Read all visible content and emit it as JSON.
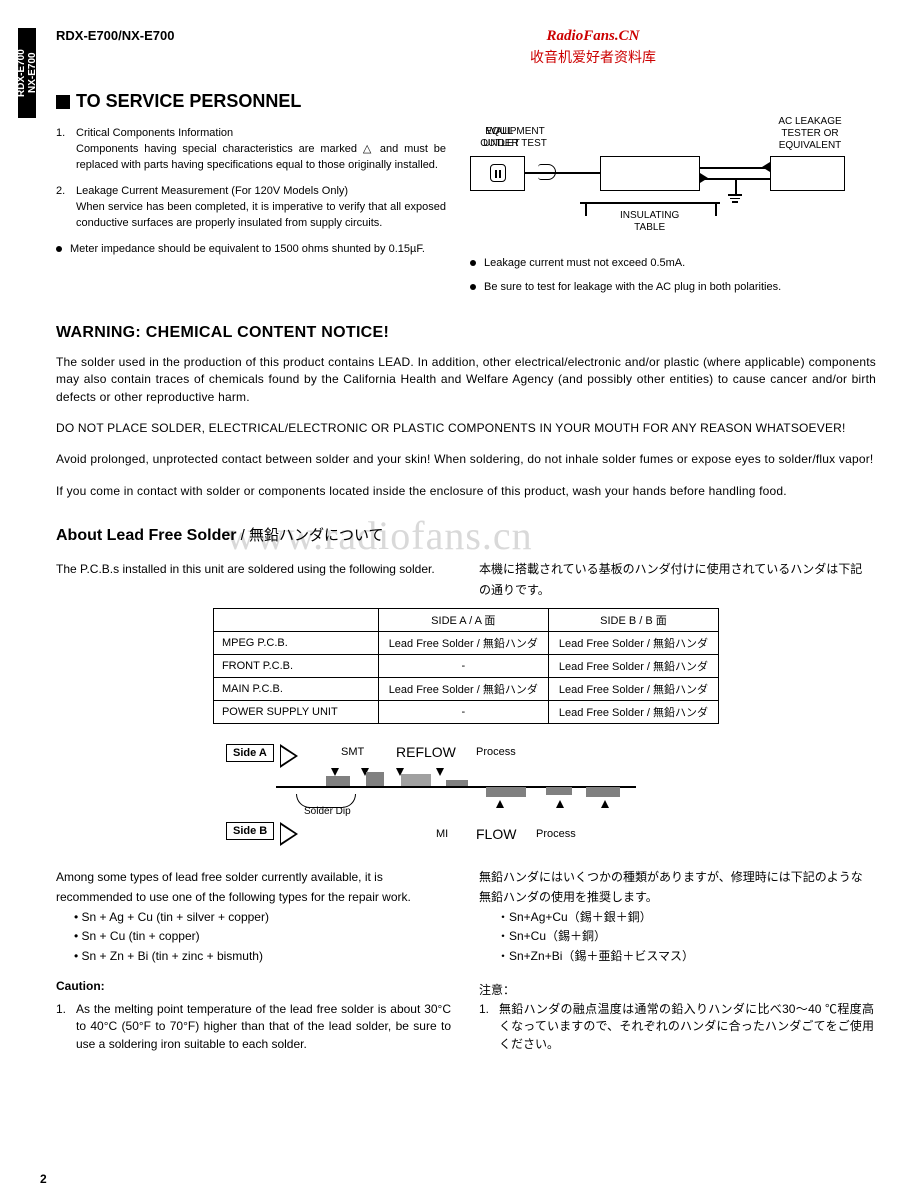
{
  "side_tab": "RDX-E700\nNX-E700",
  "header": {
    "model": "RDX-E700/NX-E700"
  },
  "watermark_top": {
    "en": "RadioFans.CN",
    "cn": "收音机爱好者资料库"
  },
  "section1": {
    "title": "TO SERVICE PERSONNEL",
    "items": [
      {
        "n": "1.",
        "title": "Critical Components Information",
        "body": "Components having special characteristics are marked △ and must be replaced with parts having specifications equal to those originally installed."
      },
      {
        "n": "2.",
        "title": "Leakage Current Measurement (For 120V Models Only)",
        "body": "When service has been completed, it is imperative to verify that all exposed conductive surfaces are properly insulated from supply circuits."
      }
    ],
    "bullets_left": [
      "Meter impedance should be equivalent to 1500 ohms shunted by 0.15µF."
    ],
    "bullets_right": [
      "Leakage current must not exceed 0.5mA.",
      "Be sure to test for leakage with the AC plug in both polarities."
    ],
    "diagram": {
      "wall": "WALL\nOUTLET",
      "eq": "EQUIPMENT\nUNDER TEST",
      "tester": "AC LEAKAGE\nTESTER OR\nEQUIVALENT",
      "table": "INSULATING\nTABLE"
    }
  },
  "warning": {
    "title": "WARNING: CHEMICAL CONTENT NOTICE!",
    "p1": "The solder used in the production of this product contains LEAD. In addition, other electrical/electronic and/or plastic (where applicable) components may also contain traces of chemicals found by the California Health and Welfare Agency (and possibly other entities) to cause cancer and/or birth defects or other reproductive harm.",
    "p2": "DO NOT PLACE SOLDER, ELECTRICAL/ELECTRONIC OR PLASTIC COMPONENTS IN YOUR MOUTH FOR ANY REASON WHATSOEVER!",
    "p3": "Avoid prolonged, unprotected contact between solder and your skin! When soldering, do not inhale solder fumes or expose eyes to solder/flux vapor!",
    "p4": "If you come in contact with solder or components located inside the enclosure of this product, wash your hands before handling food."
  },
  "big_watermark": "www.radiofans.cn",
  "about": {
    "title_en": "About Lead Free Solder",
    "title_jp": " / 無鉛ハンダについて",
    "intro_en": "The P.C.B.s installed in this unit are soldered using the following solder.",
    "intro_jp": "本機に搭載されている基板のハンダ付けに使用されているハンダは下記の通りです。",
    "table": {
      "h_a": "SIDE A / A 面",
      "h_b": "SIDE B / B 面",
      "rows": [
        {
          "name": "MPEG P.C.B.",
          "a": "Lead Free Solder / 無鉛ハンダ",
          "b": "Lead Free Solder / 無鉛ハンダ"
        },
        {
          "name": "FRONT P.C.B.",
          "a": "-",
          "b": "Lead Free Solder / 無鉛ハンダ"
        },
        {
          "name": "MAIN P.C.B.",
          "a": "Lead Free Solder / 無鉛ハンダ",
          "b": "Lead Free Solder / 無鉛ハンダ"
        },
        {
          "name": "POWER SUPPLY UNIT",
          "a": "-",
          "b": "Lead Free Solder / 無鉛ハンダ"
        }
      ]
    },
    "proc": {
      "side_a": "Side A",
      "side_b": "Side B",
      "smt": "SMT",
      "reflow": "REFLOW",
      "process1": "Process",
      "dip": "Solder Dip",
      "mi": "MI",
      "flow": "FLOW",
      "process2": "Process"
    },
    "rec_en": "Among some types of lead free solder currently available, it is recommended to use one of the following types for the repair work.",
    "rec_list_en": [
      "Sn + Ag + Cu (tin + silver + copper)",
      "Sn + Cu (tin + copper)",
      "Sn + Zn + Bi (tin + zinc + bismuth)"
    ],
    "caution_label": "Caution:",
    "caution_en": "As the melting point temperature of the lead free solder is about 30°C to 40°C (50°F to 70°F) higher than that of the lead solder, be sure to use a soldering iron suitable to each solder.",
    "rec_jp": "無鉛ハンダにはいくつかの種類がありますが、修理時には下記のような無鉛ハンダの使用を推奨します。",
    "rec_list_jp": [
      "・Sn+Ag+Cu（錫＋銀＋銅）",
      "・Sn+Cu（錫＋銅）",
      "・Sn+Zn+Bi（錫＋亜鉛＋ビスマス）"
    ],
    "caution_jp_label": "注意：",
    "caution_jp": "無鉛ハンダの融点温度は通常の鉛入りハンダに比べ30～40 ℃程度高くなっていますので、それぞれのハンダに合ったハンダごてをご使用ください。"
  },
  "page_number": "2"
}
